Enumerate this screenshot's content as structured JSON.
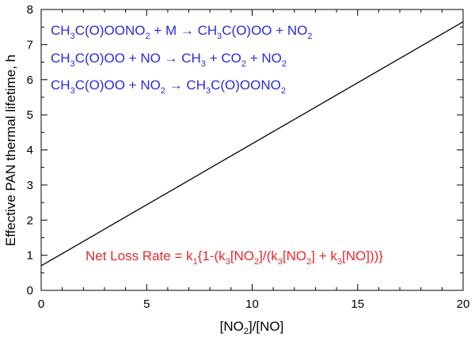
{
  "chart_data": {
    "type": "line",
    "xlabel": {
      "pre": "[NO",
      "sub": "2",
      "post": "]/[NO]"
    },
    "ylabel": "Effective PAN thermal lifetime, h",
    "xlim": [
      0,
      20
    ],
    "ylim": [
      0,
      8
    ],
    "x_ticks": [
      0,
      5,
      10,
      15,
      20
    ],
    "y_ticks": [
      0,
      1,
      2,
      3,
      4,
      5,
      6,
      7,
      8
    ],
    "x_minor_step": 1,
    "y_minor_step": 0.5,
    "grid": false,
    "series": [
      {
        "x": [
          0,
          20
        ],
        "y": [
          0.7,
          7.65
        ],
        "color": "#000000"
      }
    ],
    "annotations": [
      {
        "color": "#2b2bd9",
        "parts": [
          [
            "CH",
            ""
          ],
          [
            "3",
            "sub"
          ],
          [
            "C(O)OONO",
            ""
          ],
          [
            "2",
            "sub"
          ],
          [
            " + M → CH",
            ""
          ],
          [
            "3",
            "sub"
          ],
          [
            "C(O)OO + NO",
            ""
          ],
          [
            "2",
            "sub"
          ]
        ]
      },
      {
        "color": "#2b2bd9",
        "parts": [
          [
            "CH",
            ""
          ],
          [
            "3",
            "sub"
          ],
          [
            "C(O)OO + NO → CH",
            ""
          ],
          [
            "3",
            "sub"
          ],
          [
            " + CO",
            ""
          ],
          [
            "2",
            "sub"
          ],
          [
            " + NO",
            ""
          ],
          [
            "2",
            "sub"
          ]
        ]
      },
      {
        "color": "#2b2bd9",
        "parts": [
          [
            "CH",
            ""
          ],
          [
            "3",
            "sub"
          ],
          [
            "C(O)OO + NO",
            ""
          ],
          [
            "2",
            "sub"
          ],
          [
            " → CH",
            ""
          ],
          [
            "3",
            "sub"
          ],
          [
            "C(O)OONO",
            ""
          ],
          [
            "2",
            "sub"
          ]
        ]
      },
      {
        "color": "#e8282b",
        "parts": [
          [
            "Net Loss Rate  = k",
            ""
          ],
          [
            "1",
            "sub"
          ],
          [
            "{1-(k",
            ""
          ],
          [
            "3",
            "sub"
          ],
          [
            "[NO",
            ""
          ],
          [
            "2",
            "sub"
          ],
          [
            "]/(k",
            ""
          ],
          [
            "3",
            "sub"
          ],
          [
            "[NO",
            ""
          ],
          [
            "2",
            "sub"
          ],
          [
            "] + k",
            ""
          ],
          [
            "3",
            "sub"
          ],
          [
            "[NO]))}",
            ""
          ]
        ]
      }
    ]
  }
}
